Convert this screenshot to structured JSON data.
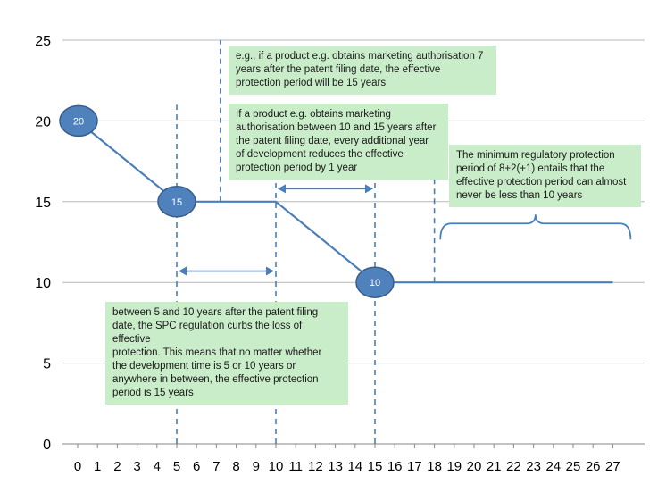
{
  "chart_data": {
    "type": "line",
    "x": [
      0,
      5,
      10,
      15,
      27
    ],
    "y": [
      20,
      15,
      15,
      10,
      10
    ],
    "xlim": [
      -1,
      28
    ],
    "ylim": [
      0,
      25
    ],
    "x_ticks": [
      "0",
      "1",
      "2",
      "3",
      "4",
      "5",
      "6",
      "7",
      "8",
      "9",
      "10",
      "11",
      "12",
      "13",
      "14",
      "15",
      "16",
      "17",
      "18",
      "19",
      "20",
      "21",
      "22",
      "23",
      "24",
      "25",
      "26",
      "27"
    ],
    "y_ticks": [
      "0",
      "5",
      "10",
      "15",
      "20",
      "25"
    ],
    "grid": "horizontal",
    "line_color": "#4a7ebb",
    "marker_color": "#4f81bd",
    "markers": [
      {
        "x": 0,
        "y": 20,
        "label": "20"
      },
      {
        "x": 5,
        "y": 15,
        "label": "15"
      },
      {
        "x": 15,
        "y": 10,
        "label": "10"
      }
    ],
    "dashed_lines": [
      {
        "x": 5,
        "y_from": 0,
        "y_to": 21
      },
      {
        "x": 7.2,
        "y_from": 15,
        "y_to": 25
      },
      {
        "x": 10,
        "y_from": 0,
        "y_to": 21
      },
      {
        "x": 15,
        "y_from": 0,
        "y_to": 16.5
      },
      {
        "x": 18,
        "y_from": 10,
        "y_to": 16.5
      }
    ],
    "range_arrows": [
      {
        "x_from": 5,
        "x_to": 10,
        "y": 10.7
      },
      {
        "x_from": 10,
        "x_to": 15,
        "y": 15.8
      }
    ],
    "brace": {
      "x_from": 18.3,
      "x_to": 27.9,
      "y": 14.2
    },
    "annotations": [
      {
        "lines": [
          "e.g., if a product e.g. obtains marketing authorisation 7",
          "years after the patent filing date, the effective",
          "protection period will be 15 years"
        ]
      },
      {
        "lines": [
          "If a product e.g. obtains marketing",
          "authorisation between 10 and 15 years after",
          "the patent filing date, every additional year",
          "of development reduces the effective",
          "protection period by 1 year"
        ]
      },
      {
        "lines": [
          "The minimum regulatory protection",
          "period of 8+2(+1) entails that the",
          "effective protection period can almost",
          "never be less than 10 years"
        ]
      },
      {
        "lines": [
          "between 5 and 10 years after the patent filing",
          "date, the SPC regulation curbs the loss of effective",
          "protection. This means that no matter whether",
          "the development time is 5 or 10 years or",
          "anywhere in between, the effective protection",
          "period is 15 years"
        ]
      }
    ],
    "annotation_color": "#c9ecc9"
  }
}
